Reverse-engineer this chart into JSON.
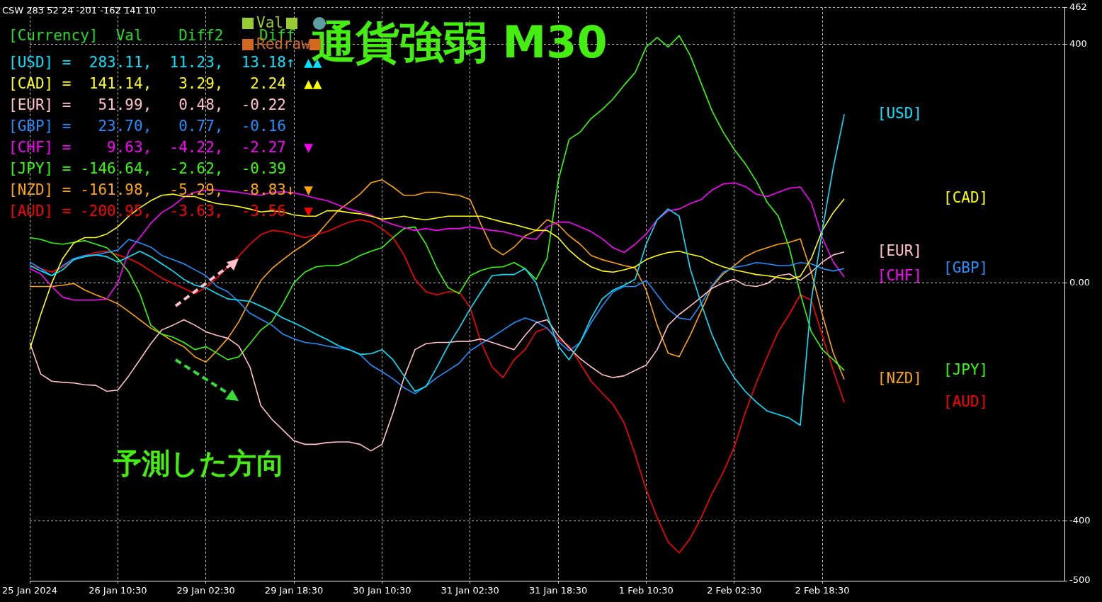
{
  "chart_data": {
    "type": "line",
    "title": "通貨強弱 M30",
    "categories": [
      "25 Jan 2024",
      null,
      null,
      null,
      null,
      null,
      null,
      null,
      "26 Jan 10:30",
      null,
      null,
      null,
      null,
      null,
      null,
      null,
      "29 Jan 02:30",
      null,
      null,
      null,
      null,
      null,
      null,
      null,
      "29 Jan 18:30",
      null,
      null,
      null,
      null,
      null,
      null,
      null,
      "30 Jan 10:30",
      null,
      null,
      null,
      null,
      null,
      null,
      null,
      "31 Jan 02:30",
      null,
      null,
      null,
      null,
      null,
      null,
      null,
      "31 Jan 18:30",
      null,
      null,
      null,
      null,
      null,
      null,
      null,
      "1 Feb 10:30",
      null,
      null,
      null,
      null,
      null,
      null,
      null,
      "2 Feb 02:30",
      null,
      null,
      null,
      null,
      null,
      null,
      null,
      "2 Feb 18:30",
      null,
      null,
      null,
      null,
      null,
      null,
      null,
      null,
      null,
      null,
      null,
      null,
      null,
      null,
      null,
      null,
      null,
      null,
      null,
      null,
      null,
      null
    ],
    "series": [
      {
        "name": "[USD]",
        "color": "#00e5ff",
        "values": [
          29,
          20,
          12,
          22,
          39,
          44,
          47,
          44,
          35,
          44,
          53,
          44,
          32,
          20,
          6,
          -4,
          -8,
          -18,
          -27,
          -29,
          -31,
          -39,
          -48,
          -59,
          -67,
          -76,
          -86,
          -95,
          -105,
          -112,
          -120,
          -119,
          -112,
          -129,
          -156,
          -182,
          -174,
          -141,
          -106,
          -76,
          -44,
          -15,
          12,
          14,
          14,
          24,
          0,
          -53,
          -106,
          -129,
          -100,
          -59,
          -27,
          -12,
          -4,
          6,
          65,
          106,
          124,
          112,
          24,
          -35,
          -88,
          -129,
          -159,
          -182,
          -200,
          -215,
          -221,
          -227,
          -239,
          -29,
          88,
          194,
          283,
          null,
          null,
          null,
          null,
          null,
          null,
          null,
          null,
          null,
          null,
          null,
          null,
          null,
          null,
          null,
          null,
          null,
          null,
          null,
          null
        ]
      },
      {
        "name": "[CAD]",
        "color": "#ffff00",
        "values": [
          -112,
          -53,
          0,
          41,
          67,
          76,
          76,
          82,
          94,
          112,
          126,
          138,
          147,
          149,
          145,
          145,
          138,
          133,
          131,
          128,
          124,
          119,
          121,
          119,
          114,
          112,
          112,
          121,
          121,
          118,
          116,
          112,
          107,
          109,
          112,
          108,
          106,
          109,
          112,
          112,
          112,
          112,
          107,
          102,
          98,
          93,
          88,
          88,
          76,
          55,
          39,
          27,
          20,
          18,
          22,
          27,
          39,
          46,
          51,
          53,
          48,
          44,
          34,
          27,
          22,
          18,
          14,
          12,
          9,
          6,
          11,
          41,
          88,
          118,
          141,
          null,
          null,
          null,
          null,
          null,
          null,
          null,
          null,
          null,
          null,
          null,
          null,
          null,
          null,
          null,
          null,
          null,
          null,
          null,
          null
        ]
      },
      {
        "name": "[EUR]",
        "color": "#ffc0cb",
        "values": [
          -100,
          -153,
          -165,
          -167,
          -168,
          -171,
          -172,
          -182,
          -180,
          -156,
          -129,
          -102,
          -79,
          -71,
          -62,
          -71,
          -82,
          -88,
          -93,
          -106,
          -141,
          -206,
          -229,
          -247,
          -265,
          -271,
          -271,
          -268,
          -267,
          -267,
          -271,
          -282,
          -271,
          -218,
          -159,
          -112,
          -102,
          -100,
          -100,
          -98,
          -98,
          -94,
          -100,
          -106,
          -112,
          -88,
          -67,
          -62,
          -88,
          -109,
          -127,
          -141,
          -154,
          -159,
          -156,
          -147,
          -138,
          -112,
          -71,
          -53,
          -39,
          -24,
          -9,
          0,
          6,
          -4,
          -6,
          -1,
          12,
          15,
          4,
          18,
          35,
          47,
          52,
          null,
          null,
          null,
          null,
          null,
          null,
          null,
          null,
          null,
          null,
          null,
          null,
          null,
          null,
          null,
          null,
          null,
          null,
          null,
          null
        ]
      },
      {
        "name": "[GBP]",
        "color": "#1e90ff",
        "values": [
          35,
          24,
          12,
          29,
          41,
          46,
          47,
          51,
          55,
          73,
          67,
          60,
          46,
          39,
          32,
          22,
          12,
          -6,
          -15,
          -32,
          -51,
          -61,
          -71,
          -86,
          -94,
          -100,
          -102,
          -106,
          -109,
          -112,
          -120,
          -138,
          -149,
          -161,
          -176,
          -186,
          -173,
          -159,
          -147,
          -135,
          -114,
          -102,
          -91,
          -79,
          -67,
          -59,
          -65,
          -76,
          -98,
          -114,
          -100,
          -67,
          -39,
          -15,
          -6,
          -6,
          4,
          -20,
          -44,
          -59,
          -62,
          -35,
          -4,
          18,
          26,
          29,
          34,
          32,
          29,
          29,
          34,
          32,
          24,
          20,
          24,
          null,
          null,
          null,
          null,
          null,
          null,
          null,
          null,
          null,
          null,
          null,
          null,
          null,
          null,
          null,
          null,
          null,
          null,
          null,
          null
        ]
      },
      {
        "name": "[CHF]",
        "color": "#ff00ff",
        "values": [
          24,
          15,
          -6,
          -24,
          -29,
          -29,
          -29,
          -27,
          0,
          53,
          76,
          100,
          118,
          129,
          144,
          152,
          156,
          156,
          154,
          152,
          149,
          147,
          152,
          153,
          151,
          147,
          142,
          138,
          131,
          124,
          119,
          114,
          105,
          98,
          93,
          88,
          91,
          88,
          91,
          91,
          94,
          91,
          88,
          86,
          81,
          76,
          73,
          94,
          102,
          102,
          94,
          86,
          74,
          59,
          51,
          65,
          82,
          106,
          121,
          124,
          133,
          140,
          156,
          166,
          168,
          162,
          149,
          145,
          152,
          159,
          161,
          135,
          76,
          35,
          10,
          null,
          null,
          null,
          null,
          null,
          null,
          null,
          null,
          null,
          null,
          null,
          null,
          null,
          null,
          null,
          null,
          null,
          null,
          null,
          null
        ]
      },
      {
        "name": "[JPY]",
        "color": "#33ff00",
        "values": [
          76,
          73,
          67,
          65,
          68,
          71,
          65,
          59,
          41,
          18,
          -18,
          -71,
          -86,
          -91,
          -100,
          -112,
          -107,
          -118,
          -129,
          -124,
          -102,
          -79,
          -65,
          -35,
          0,
          18,
          27,
          29,
          29,
          36,
          46,
          53,
          59,
          76,
          91,
          94,
          65,
          24,
          -8,
          -18,
          12,
          21,
          26,
          27,
          34,
          24,
          6,
          41,
          171,
          241,
          253,
          276,
          291,
          309,
          332,
          353,
          396,
          412,
          396,
          415,
          382,
          335,
          288,
          253,
          224,
          200,
          171,
          135,
          112,
          59,
          -18,
          -82,
          -112,
          -129,
          -147,
          null,
          null,
          null,
          null,
          null,
          null,
          null,
          null,
          null,
          null,
          null,
          null,
          null,
          null,
          null,
          null,
          null,
          null,
          null,
          null
        ]
      },
      {
        "name": "[NZD]",
        "color": "#ffa500",
        "values": [
          -6,
          -6,
          -6,
          -4,
          -1,
          -12,
          -20,
          -27,
          -35,
          -48,
          -62,
          -76,
          -86,
          -98,
          -107,
          -124,
          -133,
          -114,
          -93,
          -65,
          -29,
          4,
          24,
          39,
          53,
          65,
          79,
          100,
          121,
          135,
          149,
          168,
          173,
          161,
          147,
          147,
          152,
          152,
          149,
          147,
          140,
          98,
          59,
          47,
          60,
          79,
          88,
          106,
          98,
          79,
          65,
          46,
          39,
          34,
          29,
          25,
          -12,
          -71,
          -118,
          -124,
          -88,
          -47,
          -6,
          15,
          29,
          44,
          53,
          59,
          65,
          68,
          74,
          18,
          -53,
          -118,
          -162,
          null,
          null,
          null,
          null,
          null,
          null,
          null,
          null,
          null,
          null,
          null,
          null,
          null,
          null,
          null,
          null,
          null,
          null,
          null,
          null
        ]
      },
      {
        "name": "[AUD]",
        "color": "#ff0000",
        "values": [
          29,
          24,
          18,
          27,
          39,
          46,
          51,
          53,
          47,
          41,
          32,
          20,
          8,
          -1,
          -9,
          -18,
          -8,
          8,
          27,
          45,
          65,
          81,
          88,
          86,
          81,
          76,
          81,
          86,
          94,
          102,
          106,
          102,
          91,
          76,
          47,
          6,
          -15,
          -20,
          -15,
          -15,
          -41,
          -100,
          -141,
          -159,
          -129,
          -112,
          -82,
          -76,
          -94,
          -106,
          -135,
          -165,
          -185,
          -204,
          -235,
          -288,
          -347,
          -394,
          -435,
          -453,
          -429,
          -394,
          -353,
          -318,
          -276,
          -218,
          -168,
          -124,
          -82,
          -53,
          -20,
          -29,
          -88,
          -147,
          -201,
          null,
          null,
          null,
          null,
          null,
          null,
          null,
          null,
          null,
          null,
          null,
          null,
          null,
          null,
          null,
          null,
          null,
          null,
          null,
          null
        ]
      }
    ],
    "ylim": [
      -500,
      462
    ],
    "yticks": [
      462,
      400,
      {
        "value": 0,
        "label": "0.00"
      },
      -400,
      -500
    ],
    "grid": true,
    "legend": false,
    "marker": "none",
    "line_style": "solid",
    "annotations": [
      "CSW 283 52 24 -201 -162 141 10",
      "[Currency]  Val    Diff2    Diff",
      "[USD] =  283.11,  11.23,  13.18↑ ▲▲",
      "[CAD] =  141.14,   3.29,   2.24  ▲▲",
      "[EUR] =   51.99,   0.48,  -0.22",
      "[GBP] =   23.70,   0.77,  -0.16",
      "[CHF] =    9.63,  -4.22,  -2.27  ▼",
      "[JPY] = -146.64,  -2.62,  -0.39",
      "[NZD] = -161.98,  -5.29,  -8.83↓ ▼",
      "[AUD] = -200.95,  -3.63,  -3.56  ▼",
      "Val",
      "Redraw",
      "予測した方向"
    ]
  }
}
